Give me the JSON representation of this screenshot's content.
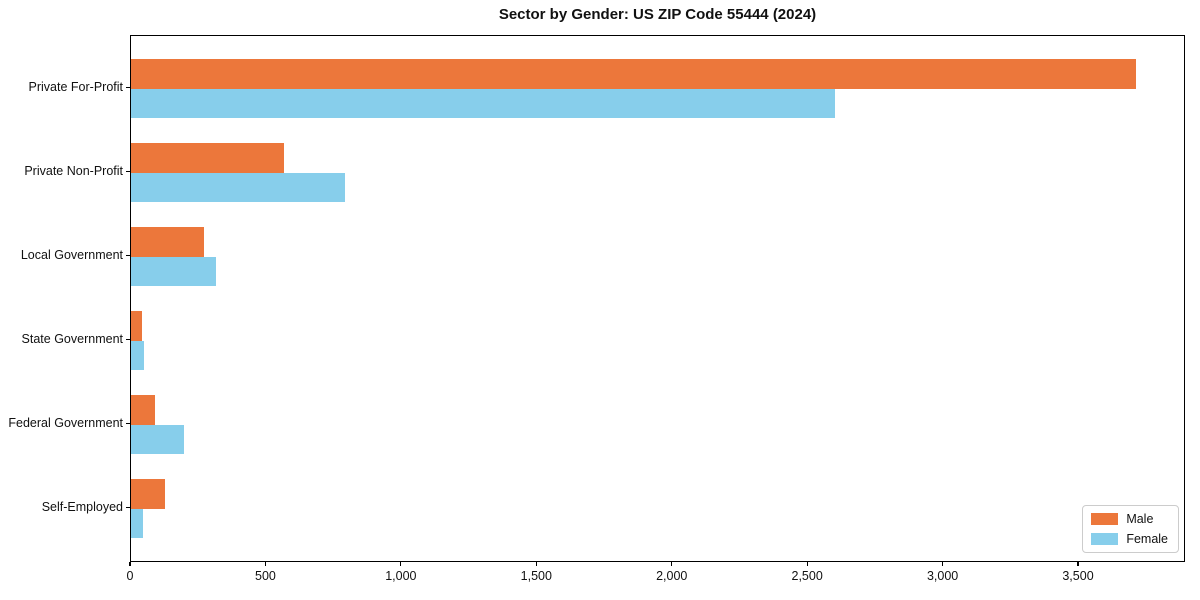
{
  "chart_data": {
    "type": "bar",
    "orientation": "horizontal",
    "title": "Sector by Gender: US ZIP Code 55444 (2024)",
    "categories": [
      "Private For-Profit",
      "Private Non-Profit",
      "Local Government",
      "State Government",
      "Federal Government",
      "Self-Employed"
    ],
    "series": [
      {
        "name": "Male",
        "color": "#EC773B",
        "values": [
          3710,
          565,
          270,
          42,
          89,
          126
        ]
      },
      {
        "name": "Female",
        "color": "#87CEEB",
        "values": [
          2600,
          790,
          314,
          48,
          196,
          44
        ]
      }
    ],
    "xlabel": "",
    "ylabel": "",
    "xlim": [
      0,
      3895
    ],
    "xticks": [
      0,
      500,
      1000,
      1500,
      2000,
      2500,
      3000,
      3500
    ],
    "grid": false,
    "legend_position": "lower right"
  }
}
